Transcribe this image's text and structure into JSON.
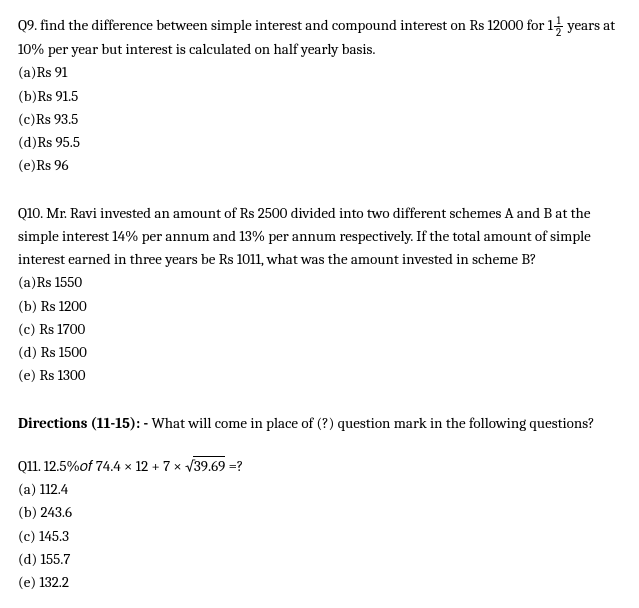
{
  "q9": {
    "prefix": "Q9. find the difference between simple interest and compound interest on Rs 12000 for ",
    "mixed_whole": "1",
    "mixed_num": "1",
    "mixed_den": "2",
    "suffix": " years at 10% per year but interest is calculated on half yearly basis.",
    "options": {
      "a": "(a)Rs 91",
      "b": "(b)Rs 91.5",
      "c": "(c)Rs 93.5",
      "d": "(d)Rs 95.5",
      "e": "(e)Rs 96"
    }
  },
  "q10": {
    "text": "Q10. Mr. Ravi invested an amount of Rs 2500 divided into two different schemes A and B at the simple interest 14% per annum and 13% per annum respectively. If the total amount of simple interest earned in three years be Rs 1011, what was the amount invested in scheme B?",
    "options": {
      "a": "(a)Rs 1550",
      "b": "(b) Rs 1200",
      "c": "(c) Rs 1700",
      "d": "(d) Rs 1500",
      "e": "(e) Rs 1300"
    }
  },
  "directions": {
    "label": "Directions (11-15): - ",
    "text": "What will come in place of (?) question mark in the following questions?"
  },
  "q11": {
    "lead": "Q11. 12.5%𝑜𝑓 74.4 × 12 + 7 × ",
    "sqrt_val": "39.69",
    "tail": " =?",
    "options": {
      "a": "(a) 112.4",
      "b": "(b) 243.6",
      "c": "(c) 145.3",
      "d": "(d) 155.7",
      "e": "(e) 132.2"
    }
  }
}
